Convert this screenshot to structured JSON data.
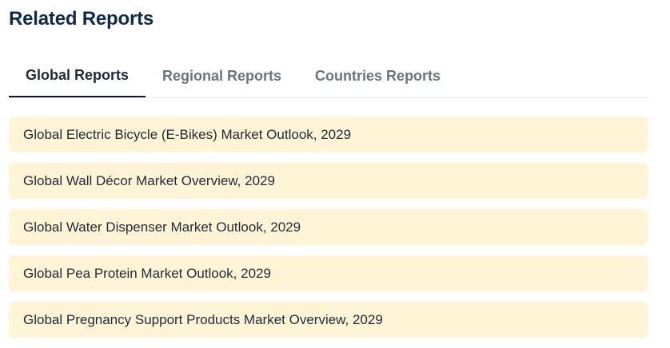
{
  "section": {
    "title": "Related Reports"
  },
  "tabs": [
    {
      "label": "Global Reports",
      "active": true
    },
    {
      "label": "Regional Reports",
      "active": false
    },
    {
      "label": "Countries Reports",
      "active": false
    }
  ],
  "reports": [
    "Global Electric Bicycle (E-Bikes) Market Outlook, 2029",
    "Global Wall Décor Market Overview, 2029",
    "Global Water Dispenser Market Outlook, 2029",
    "Global Pea Protein Market Outlook, 2029",
    "Global Pregnancy Support Products Market Overview, 2029"
  ],
  "colors": {
    "heading": "#0f2a4a",
    "item_background": "#fff4d6",
    "active_tab_underline": "#111827",
    "inactive_tab_text": "#6b7280"
  }
}
